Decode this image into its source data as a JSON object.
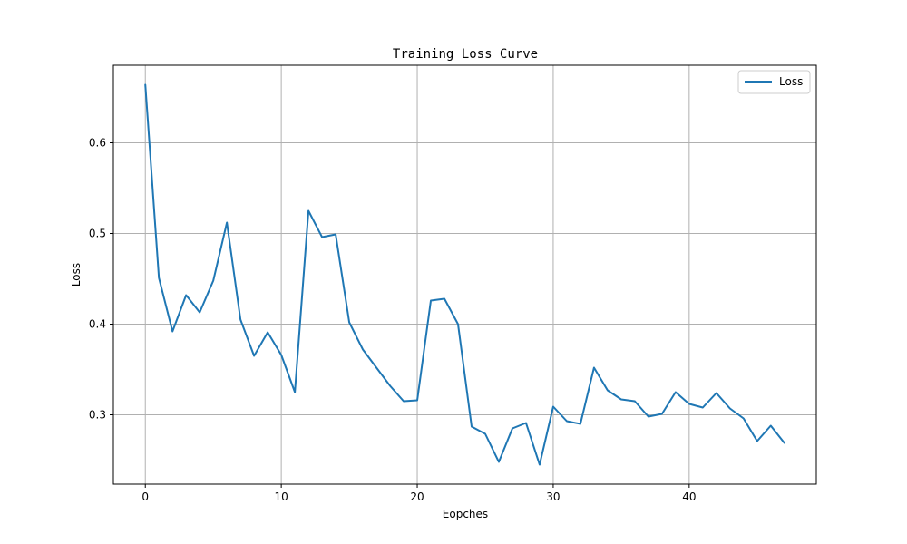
{
  "chart_data": {
    "type": "line",
    "title": "Training Loss Curve",
    "xlabel": "Eopches",
    "ylabel": "Loss",
    "xlim": [
      -2.35,
      49.35
    ],
    "ylim": [
      0.2235,
      0.6855
    ],
    "xticks": [
      0,
      10,
      20,
      30,
      40
    ],
    "yticks": [
      0.3,
      0.4,
      0.5,
      0.6
    ],
    "xtick_labels": [
      "0",
      "10",
      "20",
      "30",
      "40"
    ],
    "ytick_labels": [
      "0.3",
      "0.4",
      "0.5",
      "0.6"
    ],
    "grid": true,
    "legend_position": "top-right",
    "colors": {
      "line": "#1f77b4",
      "grid": "#b0b0b0",
      "axes": "#000000",
      "background": "#ffffff"
    },
    "series": [
      {
        "name": "Loss",
        "x": [
          0,
          1,
          2,
          3,
          4,
          5,
          6,
          7,
          8,
          9,
          10,
          11,
          12,
          13,
          14,
          15,
          16,
          17,
          18,
          19,
          20,
          21,
          22,
          23,
          24,
          25,
          26,
          27,
          28,
          29,
          30,
          31,
          32,
          33,
          34,
          35,
          36,
          37,
          38,
          39,
          40,
          41,
          42,
          43,
          44,
          45,
          46,
          47
        ],
        "y": [
          0.664,
          0.451,
          0.392,
          0.432,
          0.413,
          0.448,
          0.512,
          0.405,
          0.365,
          0.391,
          0.366,
          0.325,
          0.525,
          0.496,
          0.499,
          0.402,
          0.372,
          0.352,
          0.332,
          0.315,
          0.316,
          0.426,
          0.428,
          0.4,
          0.287,
          0.279,
          0.248,
          0.285,
          0.291,
          0.245,
          0.309,
          0.293,
          0.29,
          0.352,
          0.327,
          0.317,
          0.315,
          0.298,
          0.301,
          0.325,
          0.312,
          0.308,
          0.324,
          0.307,
          0.296,
          0.271,
          0.288,
          0.269
        ]
      }
    ]
  }
}
